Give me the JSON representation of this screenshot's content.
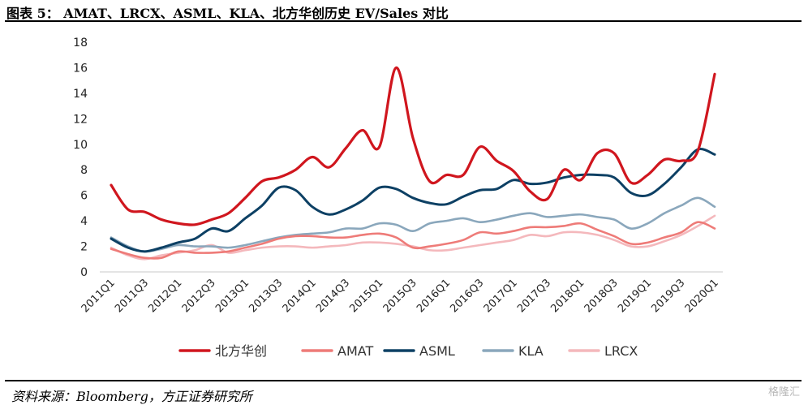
{
  "header": {
    "title": "图表 5： AMAT、LRCX、ASML、KLA、北方华创历史 EV/Sales 对比"
  },
  "footer": {
    "source": "资料来源：Bloomberg，方正证券研究所",
    "watermark": "格隆汇"
  },
  "chart_data": {
    "type": "line",
    "title": "图表 5： AMAT、LRCX、ASML、KLA、北方华创历史 EV/Sales 对比",
    "xlabel": "",
    "ylabel": "",
    "ylim": [
      0,
      18
    ],
    "yticks": [
      0,
      2,
      4,
      6,
      8,
      10,
      12,
      14,
      16,
      18
    ],
    "grid": false,
    "legend_position": "bottom",
    "categories": [
      "2011Q1",
      "2011Q2",
      "2011Q3",
      "2011Q4",
      "2012Q1",
      "2012Q2",
      "2012Q3",
      "2012Q4",
      "2013Q1",
      "2013Q2",
      "2013Q3",
      "2013Q4",
      "2014Q1",
      "2014Q2",
      "2014Q3",
      "2014Q4",
      "2015Q1",
      "2015Q2",
      "2015Q3",
      "2015Q4",
      "2016Q1",
      "2016Q2",
      "2016Q3",
      "2016Q4",
      "2017Q1",
      "2017Q2",
      "2017Q3",
      "2017Q4",
      "2018Q1",
      "2018Q2",
      "2018Q3",
      "2018Q4",
      "2019Q1",
      "2019Q2",
      "2019Q3",
      "2019Q4",
      "2020Q1"
    ],
    "tick_labels": [
      "2011Q1",
      "2011Q3",
      "2012Q1",
      "2012Q3",
      "2013Q1",
      "2013Q3",
      "2014Q1",
      "2014Q3",
      "2015Q1",
      "2015Q3",
      "2016Q1",
      "2016Q3",
      "2017Q1",
      "2017Q3",
      "2018Q1",
      "2018Q3",
      "2019Q1",
      "2019Q3",
      "2020Q1"
    ],
    "series": [
      {
        "name": "北方华创",
        "color": "#d0161e",
        "width": 3.2,
        "values": [
          6.8,
          4.9,
          4.7,
          4.1,
          3.8,
          3.7,
          4.1,
          4.6,
          5.8,
          7.1,
          7.4,
          8.0,
          9.0,
          8.2,
          9.7,
          11.1,
          9.8,
          16.0,
          10.5,
          7.1,
          7.6,
          7.6,
          9.8,
          8.7,
          7.9,
          6.3,
          5.7,
          8.0,
          7.2,
          9.3,
          9.3,
          7.0,
          7.6,
          8.8,
          8.7,
          9.5,
          15.5
        ]
      },
      {
        "name": "AMAT",
        "color": "#ee7b78",
        "width": 2.6,
        "values": [
          1.8,
          1.4,
          1.1,
          1.1,
          1.6,
          1.5,
          1.5,
          1.6,
          1.9,
          2.2,
          2.6,
          2.8,
          2.8,
          2.7,
          2.7,
          2.9,
          3.0,
          2.7,
          1.9,
          2.0,
          2.2,
          2.5,
          3.1,
          3.0,
          3.2,
          3.5,
          3.5,
          3.6,
          3.8,
          3.3,
          2.8,
          2.2,
          2.3,
          2.7,
          3.1,
          3.9,
          3.4
        ]
      },
      {
        "name": "ASML",
        "color": "#0d4064",
        "width": 3.0,
        "values": [
          2.6,
          1.9,
          1.6,
          1.9,
          2.3,
          2.6,
          3.4,
          3.2,
          4.2,
          5.2,
          6.6,
          6.4,
          5.1,
          4.5,
          4.9,
          5.6,
          6.6,
          6.5,
          5.8,
          5.4,
          5.3,
          5.9,
          6.4,
          6.5,
          7.2,
          6.9,
          7.0,
          7.4,
          7.6,
          7.6,
          7.4,
          6.2,
          6.0,
          6.9,
          8.2,
          9.6,
          9.2
        ]
      },
      {
        "name": "KLA",
        "color": "#8aa7bc",
        "width": 2.6,
        "values": [
          2.7,
          2.0,
          1.6,
          1.8,
          2.1,
          2.0,
          2.0,
          1.9,
          2.1,
          2.4,
          2.7,
          2.9,
          3.0,
          3.1,
          3.4,
          3.4,
          3.8,
          3.7,
          3.2,
          3.8,
          4.0,
          4.2,
          3.9,
          4.1,
          4.4,
          4.6,
          4.3,
          4.4,
          4.5,
          4.3,
          4.1,
          3.4,
          3.8,
          4.6,
          5.2,
          5.8,
          5.1
        ]
      },
      {
        "name": "LRCX",
        "color": "#f4b8bc",
        "width": 2.6,
        "values": [
          1.9,
          1.3,
          1.0,
          1.3,
          1.5,
          1.7,
          2.1,
          1.5,
          1.7,
          1.9,
          2.0,
          2.0,
          1.9,
          2.0,
          2.1,
          2.3,
          2.3,
          2.2,
          2.0,
          1.7,
          1.7,
          1.9,
          2.1,
          2.3,
          2.5,
          2.9,
          2.8,
          3.1,
          3.1,
          2.9,
          2.5,
          2.0,
          2.0,
          2.4,
          2.9,
          3.6,
          4.4
        ]
      }
    ]
  }
}
